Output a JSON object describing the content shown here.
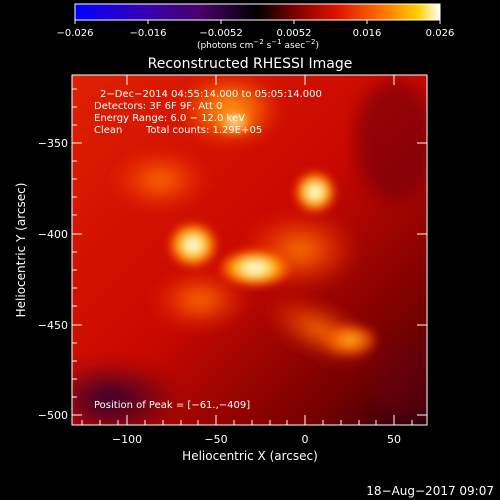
{
  "colorbar": {
    "ticks": [
      "−0.026",
      "−0.016",
      "−0.0052",
      "0.0052",
      "0.016",
      "0.026"
    ],
    "units_parts": {
      "p1": "(photons cm",
      "p1sup": "−2",
      "p2": " s",
      "p2sup": "−1",
      "p3": " asec",
      "p3sup": "−2",
      "p4": ")"
    },
    "colors": [
      "#0000ff",
      "#3a00b0",
      "#5a0090",
      "#000000",
      "#800000",
      "#e01000",
      "#ff6000",
      "#ffc000",
      "#ffffff"
    ]
  },
  "plot": {
    "title": "Reconstructed RHESSI Image",
    "xlabel": "Heliocentric X (arcsec)",
    "ylabel": "Heliocentric Y (arcsec)",
    "xticks": [
      "−100",
      "−50",
      "0",
      "50"
    ],
    "yticks": [
      "−350",
      "−400",
      "−450",
      "−500"
    ],
    "info_line1": "2−Dec−2014 04:55:14.000 to 05:05:14.000",
    "info_line2": "Detectors: 3F 6F 9F, Att 0",
    "info_line3": "Energy Range: 6.0 − 12.0 keV",
    "info_line4_left": "Clean",
    "info_line4_right": "Total counts: 1.29E+05",
    "peak_label": "Position of Peak = [−61.,−409]"
  },
  "footer": {
    "date": "18−Aug−2017 09:07"
  }
}
